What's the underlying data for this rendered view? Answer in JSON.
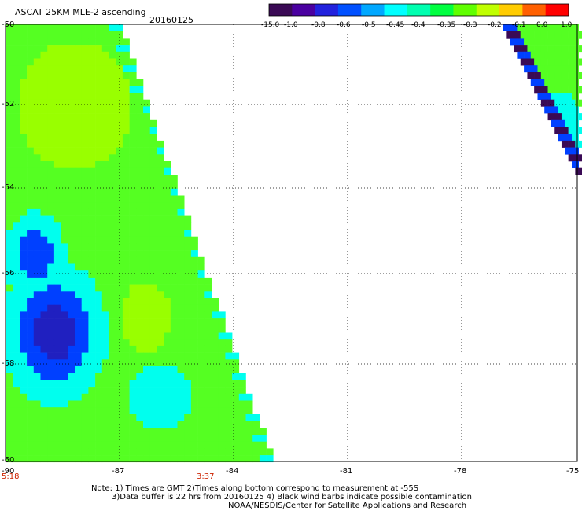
{
  "title": "ASCAT 25KM MLE-2 ascending",
  "date": "20160125",
  "colorbar": {
    "tick_labels": [
      "-15.0",
      "-1.0",
      "-0.8",
      "-0.6",
      "-0.5",
      "-0.45",
      "-0.4",
      "-0.35",
      "-0.3",
      "-0.2",
      "-0.1",
      "0.0",
      "1.0"
    ],
    "colors": [
      "#3a0a55",
      "#4a00a0",
      "#2222dd",
      "#0050ff",
      "#00a8ff",
      "#00ffff",
      "#00ffb0",
      "#00ff40",
      "#60ff00",
      "#c0ff00",
      "#ffcc00",
      "#ff6000",
      "#ff0000"
    ]
  },
  "axes": {
    "lat_labels": [
      "-50",
      "-52",
      "-54",
      "-56",
      "-58",
      "-60"
    ],
    "lon_labels": [
      "-90",
      "-87",
      "-84",
      "-81",
      "-78",
      "-75"
    ],
    "time_labels": [
      "5:18",
      "3:37"
    ]
  },
  "map": {
    "lat_range": [
      -60,
      -50
    ],
    "lon_range": [
      -90,
      -75
    ],
    "grid": "dotted",
    "color_main": "#55ff22",
    "color_light": "#99ff00",
    "color_cyan": "#00ffee",
    "color_blue": "#0040ff",
    "color_dark": "#2020c0",
    "color_violet": "#3a0a55"
  },
  "notes": [
    "Note: 1) Times are GMT 2)Times along bottom correspond to measurement at -55S",
    "3)Data buffer is 22 hrs from 20160125 4) Black wind barbs indicate possible contamination",
    "NOAA/NESDIS/Center for Satellite Applications and Research"
  ]
}
